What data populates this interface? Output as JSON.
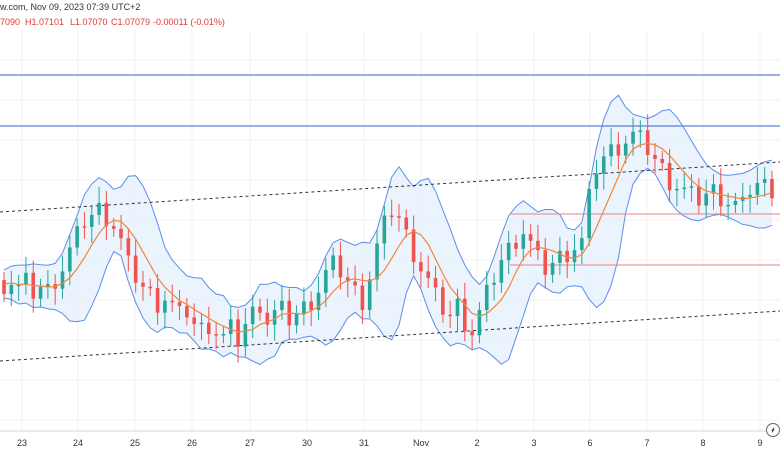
{
  "header": {
    "source_line": "w.com, Nov 09, 2023 07:39 UTC+2",
    "ohlc": [
      {
        "text": "7090",
        "color": "#e53935"
      },
      {
        "text": "H1.07101",
        "color": "#e53935"
      },
      {
        "text": "L1.07070",
        "color": "#e53935"
      },
      {
        "text": "C1.07079",
        "color": "#e53935"
      },
      {
        "text": "-0.00011 (-0.01%)",
        "color": "#e53935"
      }
    ]
  },
  "chart_data": {
    "type": "candlestick",
    "x_tick_labels": [
      "23",
      "24",
      "25",
      "26",
      "27",
      "30",
      "31",
      "Nov",
      "2",
      "3",
      "6",
      "7",
      "8",
      "9"
    ],
    "candle_price_path": [
      0.0,
      0.2,
      -0.3,
      0.1,
      -0.6,
      -0.2,
      -0.5,
      0.4,
      1.2,
      2.5,
      3.6,
      4.8,
      5.2,
      5.6,
      5.1,
      4.4,
      3.2,
      1.4,
      0.6,
      -0.2,
      -0.8,
      -1.4,
      -1.0,
      -1.6,
      -2.4,
      -2.0,
      -3.0,
      -3.4,
      -3.0,
      -3.6,
      -4.0,
      -3.4,
      -4.2,
      -3.0,
      -2.2,
      -1.4,
      -2.8,
      -2.2,
      -2.0,
      -2.6,
      -2.2,
      -1.8,
      -1.2,
      -0.4,
      0.8,
      1.4,
      1.0,
      0.2,
      -0.6,
      -1.2,
      0.6,
      2.8,
      4.4,
      5.6,
      5.0,
      3.6,
      2.4,
      1.2,
      0.2,
      -1.0,
      -1.8,
      -2.4,
      -1.6,
      -2.8,
      -3.6,
      -2.2,
      -0.8,
      0.6,
      1.8,
      2.6,
      3.4,
      4.0,
      3.0,
      1.8,
      1.2,
      1.6,
      2.0,
      2.4,
      2.8,
      3.2,
      6.4,
      8.8,
      9.6,
      10.0,
      10.4,
      10.8,
      11.2,
      10.8,
      10.2,
      9.4,
      8.6,
      7.8,
      7.4,
      7.0,
      6.6,
      6.4,
      6.8,
      7.0,
      6.6,
      6.2,
      6.0,
      5.8,
      7.2,
      7.6,
      7.4,
      7.2
    ],
    "series": [
      {
        "name": "",
        "kind": "candles",
        "color_up": "#26a69a",
        "color_down": "#ef5350"
      },
      {
        "name": "",
        "kind": "moving-average",
        "color": "#f0883e"
      },
      {
        "name": "",
        "kind": "bollinger-bands",
        "color": "#5b8def",
        "fill": "#e3eefb"
      }
    ],
    "horizontal_lines": [
      {
        "color": "#5b7fd9",
        "style": "solid",
        "kind": "resistance-upper"
      },
      {
        "color": "#5b7fd9",
        "style": "solid",
        "kind": "resistance-lower"
      },
      {
        "color": "#ef7f7f",
        "style": "solid",
        "kind": "range-top"
      },
      {
        "color": "#ef7f7f",
        "style": "solid",
        "kind": "range-bottom"
      }
    ],
    "trend_lines": [
      {
        "style": "dashed",
        "color": "#333333",
        "kind": "channel-upper"
      },
      {
        "style": "dashed",
        "color": "#333333",
        "kind": "channel-lower"
      }
    ],
    "grid": true
  },
  "controls": {
    "scroll_icon": "tradingview-scroll-icon"
  }
}
